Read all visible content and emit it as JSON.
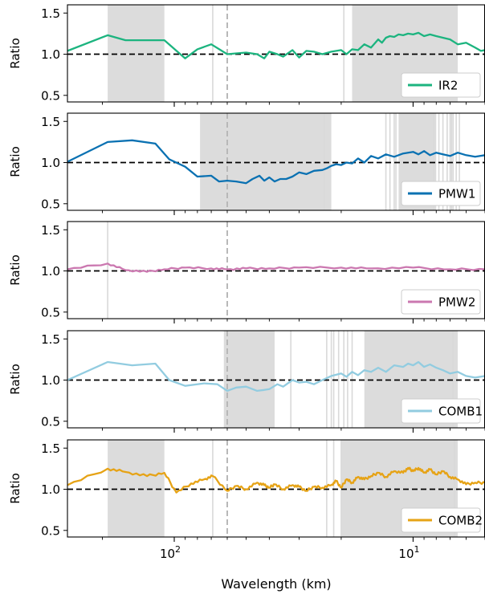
{
  "figure": {
    "xlabel": "Wavelength (km)"
  },
  "chart_data": {
    "type": "line",
    "xscale": "log",
    "xaxis": "reversed",
    "xlim": [
      280,
      5
    ],
    "xticks": [
      {
        "value": 100,
        "label": "10",
        "exponent": "2"
      },
      {
        "value": 10,
        "label": "10",
        "exponent": "1"
      }
    ],
    "ylim": [
      0.42,
      1.6
    ],
    "yticks": [
      "0.5",
      "1.0",
      "1.5"
    ],
    "ylabel": "Ratio",
    "reference_y": 1.0,
    "dashed_vline_x": 60,
    "grid": false,
    "legend_position": "lower-right",
    "panels": [
      {
        "series": "IR2",
        "color": "#1cb47f",
        "shaded": [
          [
            190,
            110
          ],
          [
            18,
            6.5
          ]
        ],
        "vlines": [
          69,
          19.5
        ],
        "x": [
          280,
          190,
          160,
          130,
          110,
          90,
          80,
          70,
          60,
          55,
          50,
          45,
          42,
          40,
          37,
          35,
          32,
          30,
          28,
          26,
          24,
          22,
          20,
          19,
          18,
          17,
          16,
          15,
          14,
          13.5,
          13,
          12.5,
          12,
          11.5,
          11,
          10.5,
          10,
          9.5,
          9,
          8.5,
          8,
          7.5,
          7,
          6.5,
          6,
          5.5,
          5.2,
          5
        ],
        "y": [
          1.04,
          1.23,
          1.17,
          1.17,
          1.17,
          0.95,
          1.06,
          1.12,
          1.0,
          1.01,
          1.02,
          1.0,
          0.95,
          1.03,
          1.0,
          0.97,
          1.05,
          0.96,
          1.04,
          1.03,
          1.0,
          1.03,
          1.05,
          1.0,
          1.06,
          1.05,
          1.12,
          1.08,
          1.18,
          1.14,
          1.2,
          1.22,
          1.21,
          1.24,
          1.23,
          1.25,
          1.24,
          1.26,
          1.22,
          1.24,
          1.22,
          1.2,
          1.18,
          1.12,
          1.14,
          1.08,
          1.04,
          1.05
        ]
      },
      {
        "series": "PMW1",
        "color": "#0a71b2",
        "shaded": [
          [
            78,
            22
          ],
          [
            11.5,
            8.0
          ]
        ],
        "vlines": [
          23.5,
          13,
          12.5,
          12,
          11.8,
          8.2,
          7.8,
          7.5,
          7.2,
          7.0,
          6.9,
          6.8,
          6.6,
          6.4
        ],
        "x": [
          280,
          190,
          150,
          120,
          105,
          90,
          80,
          70,
          65,
          60,
          55,
          50,
          47,
          44,
          42,
          40,
          38,
          36,
          34,
          32,
          30,
          28,
          26,
          24,
          23,
          22,
          21,
          20,
          19,
          18,
          17,
          16,
          15,
          14,
          13,
          12,
          11,
          10.5,
          10,
          9.5,
          9,
          8.5,
          8,
          7.5,
          7,
          6.5,
          6,
          5.5,
          5
        ],
        "y": [
          1.01,
          1.25,
          1.27,
          1.23,
          1.04,
          0.95,
          0.83,
          0.84,
          0.77,
          0.78,
          0.77,
          0.75,
          0.8,
          0.84,
          0.78,
          0.82,
          0.77,
          0.8,
          0.8,
          0.83,
          0.88,
          0.86,
          0.9,
          0.91,
          0.93,
          0.96,
          0.98,
          0.97,
          1.0,
          0.99,
          1.05,
          1.0,
          1.08,
          1.05,
          1.1,
          1.07,
          1.11,
          1.12,
          1.13,
          1.1,
          1.14,
          1.09,
          1.12,
          1.1,
          1.08,
          1.12,
          1.09,
          1.07,
          1.09
        ]
      },
      {
        "series": "PMW2",
        "color": "#cb78b0",
        "shaded": [],
        "vlines": [
          190
        ],
        "x": [
          280,
          190,
          160,
          130,
          110,
          90,
          70,
          60,
          50,
          40,
          30,
          20,
          15,
          10,
          7,
          5
        ],
        "y": [
          1.02,
          1.09,
          1.01,
          0.99,
          1.02,
          1.04,
          1.03,
          1.02,
          1.03,
          1.03,
          1.04,
          1.04,
          1.03,
          1.04,
          1.02,
          1.02
        ],
        "ripple": 0.01
      },
      {
        "series": "COMB1",
        "color": "#92cce0",
        "shaded": [
          [
            62,
            38
          ],
          [
            16,
            6.5
          ]
        ],
        "vlines": [
          32.5,
          23,
          22,
          21.5,
          20.5,
          19.5,
          18.8,
          18,
          6.8
        ],
        "x": [
          280,
          190,
          150,
          120,
          105,
          90,
          75,
          66,
          60,
          55,
          50,
          45,
          42,
          40,
          37,
          35,
          32,
          30,
          28,
          26,
          24,
          22,
          20,
          19,
          18,
          17,
          16,
          15,
          14,
          13,
          12,
          11,
          10.5,
          10,
          9.5,
          9,
          8.5,
          8,
          7.5,
          7,
          6.5,
          6,
          5.5,
          5
        ],
        "y": [
          1.0,
          1.22,
          1.18,
          1.2,
          1.0,
          0.93,
          0.96,
          0.95,
          0.87,
          0.91,
          0.92,
          0.87,
          0.88,
          0.89,
          0.95,
          0.92,
          1.0,
          0.97,
          0.98,
          0.95,
          1.0,
          1.05,
          1.08,
          1.04,
          1.1,
          1.06,
          1.12,
          1.1,
          1.15,
          1.1,
          1.18,
          1.16,
          1.2,
          1.18,
          1.22,
          1.16,
          1.19,
          1.15,
          1.12,
          1.08,
          1.1,
          1.05,
          1.03,
          1.05
        ]
      },
      {
        "series": "COMB2",
        "color": "#e6a316",
        "shaded": [
          [
            190,
            110
          ],
          [
            20,
            6.5
          ]
        ],
        "vlines": [
          69,
          23,
          21.5,
          20,
          6.7
        ],
        "x": [
          280,
          190,
          160,
          130,
          110,
          98,
          85,
          75,
          69,
          60,
          55,
          50,
          45,
          42,
          40,
          38,
          35,
          32,
          30,
          28,
          26,
          24,
          22,
          21,
          20,
          19,
          18,
          17,
          16,
          15,
          14,
          13,
          12,
          11,
          10.5,
          10,
          9.5,
          9,
          8.5,
          8,
          7.5,
          7,
          6.5,
          6,
          5.5,
          5
        ],
        "y": [
          1.05,
          1.25,
          1.21,
          1.16,
          1.2,
          0.96,
          1.07,
          1.12,
          1.16,
          0.98,
          1.04,
          1.0,
          1.08,
          1.05,
          1.02,
          1.06,
          1.0,
          1.05,
          1.03,
          0.98,
          1.03,
          1.02,
          1.05,
          1.1,
          1.02,
          1.12,
          1.08,
          1.15,
          1.12,
          1.16,
          1.2,
          1.15,
          1.22,
          1.2,
          1.26,
          1.22,
          1.26,
          1.2,
          1.24,
          1.18,
          1.22,
          1.15,
          1.12,
          1.06,
          1.08,
          1.08
        ],
        "ripple": 0.015
      }
    ]
  }
}
